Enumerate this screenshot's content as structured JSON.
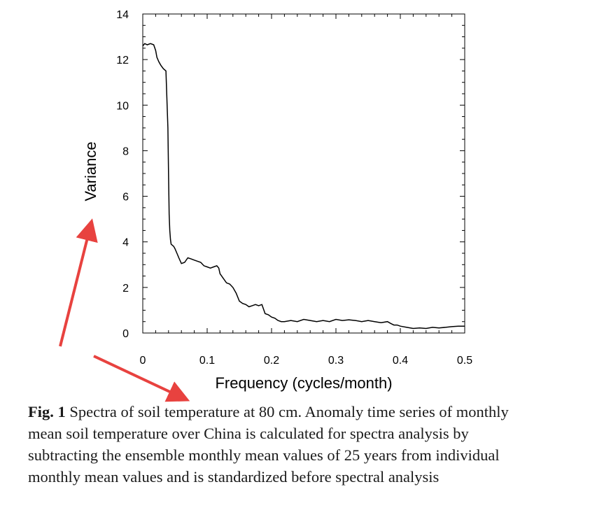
{
  "chart_data": {
    "type": "line",
    "xlabel": "Frequency (cycles/month)",
    "ylabel": "Variance",
    "xlim": [
      0,
      0.5
    ],
    "ylim": [
      0,
      14
    ],
    "xticks": [
      "0",
      "0.1",
      "0.2",
      "0.3",
      "0.4",
      "0.5"
    ],
    "yticks": [
      "0",
      "2",
      "4",
      "6",
      "8",
      "10",
      "12",
      "14"
    ],
    "grid": false,
    "legend": "none",
    "line_color": "#000000",
    "series": [
      {
        "x": [
          0.0,
          0.003,
          0.007,
          0.012,
          0.017,
          0.02,
          0.022,
          0.025,
          0.028,
          0.032,
          0.036,
          0.039,
          0.04,
          0.041,
          0.042,
          0.043,
          0.044,
          0.046,
          0.048,
          0.05,
          0.053,
          0.056,
          0.06,
          0.065,
          0.07,
          0.075,
          0.08,
          0.085,
          0.09,
          0.095,
          0.1,
          0.105,
          0.11,
          0.115,
          0.118,
          0.12,
          0.125,
          0.13,
          0.135,
          0.14,
          0.145,
          0.15,
          0.155,
          0.16,
          0.165,
          0.17,
          0.175,
          0.18,
          0.185,
          0.19,
          0.195,
          0.2,
          0.205,
          0.21,
          0.215,
          0.22,
          0.23,
          0.24,
          0.25,
          0.26,
          0.27,
          0.28,
          0.29,
          0.3,
          0.31,
          0.32,
          0.33,
          0.34,
          0.35,
          0.36,
          0.37,
          0.38,
          0.385,
          0.39,
          0.395,
          0.4,
          0.41,
          0.42,
          0.43,
          0.44,
          0.45,
          0.46,
          0.47,
          0.48,
          0.49,
          0.5
        ],
        "y": [
          12.6,
          12.7,
          12.65,
          12.7,
          12.65,
          12.4,
          12.1,
          11.9,
          11.75,
          11.6,
          11.5,
          9.0,
          7.0,
          5.2,
          4.5,
          4.1,
          3.9,
          3.85,
          3.8,
          3.7,
          3.5,
          3.3,
          3.05,
          3.1,
          3.3,
          3.25,
          3.2,
          3.15,
          3.1,
          2.95,
          2.9,
          2.85,
          2.9,
          2.95,
          2.85,
          2.6,
          2.4,
          2.2,
          2.15,
          2.0,
          1.75,
          1.4,
          1.3,
          1.25,
          1.15,
          1.2,
          1.25,
          1.2,
          1.25,
          0.85,
          0.8,
          0.7,
          0.65,
          0.55,
          0.5,
          0.5,
          0.55,
          0.5,
          0.6,
          0.55,
          0.5,
          0.55,
          0.5,
          0.6,
          0.55,
          0.58,
          0.55,
          0.5,
          0.55,
          0.5,
          0.45,
          0.5,
          0.42,
          0.35,
          0.35,
          0.3,
          0.25,
          0.2,
          0.22,
          0.2,
          0.25,
          0.22,
          0.25,
          0.28,
          0.3,
          0.3
        ]
      }
    ]
  },
  "caption": {
    "label": "Fig. 1",
    "text": "Spectra of soil temperature at 80 cm. Anomaly time series of monthly mean soil temperature over China is calculated for spectra analysis by subtracting the ensemble monthly mean values of 25 years from individual monthly mean values and is standardized before spectral analysis"
  },
  "annotations": {
    "arrow_color": "#e8423f"
  }
}
